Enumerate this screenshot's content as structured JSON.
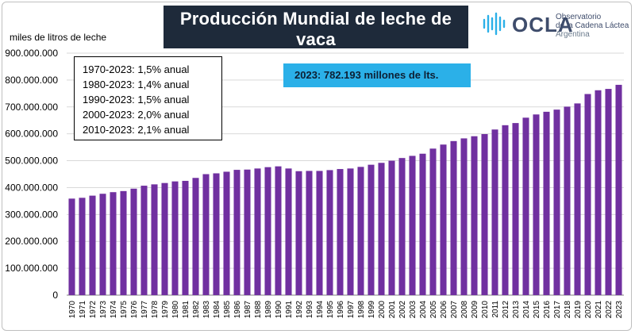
{
  "header": {
    "title": "Producción Mundial de leche de vaca",
    "subtitle": "- en miles de litros de leche -"
  },
  "logo": {
    "name": "OCLA",
    "line1": "Observatorio",
    "line2": "de la Cadena Láctea",
    "line3": "Argentina"
  },
  "summary": {
    "lines": [
      "1970-2023: 1,5% anual",
      "1980-2023: 1,4% anual",
      "1990-2023: 1,5% anual",
      "2000-2023: 2,0% anual",
      "2010-2023: 2,1% anual"
    ]
  },
  "callout": "2023: 782.193 millones de lts.",
  "colors": {
    "bar": "#7030a0",
    "title_bg": "#1e2a3a",
    "callout_bg": "#2bb0e8"
  },
  "chart_data": {
    "type": "bar",
    "title": "Producción Mundial de leche de vaca",
    "subtitle": "- en miles de litros de leche -",
    "xlabel": "",
    "ylabel": "miles de litros de leche",
    "ylim": [
      0,
      900000000
    ],
    "yticks": [
      0,
      100000000,
      200000000,
      300000000,
      400000000,
      500000000,
      600000000,
      700000000,
      800000000,
      900000000
    ],
    "ytick_labels": [
      "0",
      "100.000.000",
      "200.000.000",
      "300.000.000",
      "400.000.000",
      "500.000.000",
      "600.000.000",
      "700.000.000",
      "800.000.000",
      "900.000.000"
    ],
    "grid": true,
    "categories": [
      "1970",
      "1971",
      "1972",
      "1973",
      "1974",
      "1975",
      "1976",
      "1977",
      "1978",
      "1979",
      "1980",
      "1981",
      "1982",
      "1983",
      "1984",
      "1985",
      "1986",
      "1987",
      "1988",
      "1989",
      "1990",
      "1991",
      "1992",
      "1993",
      "1994",
      "1995",
      "1996",
      "1997",
      "1998",
      "1999",
      "2000",
      "2001",
      "2002",
      "2003",
      "2004",
      "2005",
      "2006",
      "2007",
      "2008",
      "2009",
      "2010",
      "2011",
      "2012",
      "2013",
      "2014",
      "2015",
      "2016",
      "2017",
      "2018",
      "2019",
      "2020",
      "2021",
      "2022",
      "2023"
    ],
    "values": [
      359000000,
      362000000,
      370000000,
      377000000,
      383000000,
      387000000,
      396000000,
      407000000,
      412000000,
      417000000,
      423000000,
      425000000,
      436000000,
      450000000,
      453000000,
      459000000,
      466000000,
      467000000,
      471000000,
      476000000,
      479000000,
      471000000,
      461000000,
      462000000,
      462000000,
      465000000,
      469000000,
      471000000,
      477000000,
      485000000,
      492000000,
      500000000,
      510000000,
      518000000,
      526000000,
      545000000,
      560000000,
      573000000,
      583000000,
      591000000,
      599000000,
      616000000,
      632000000,
      640000000,
      660000000,
      672000000,
      682000000,
      690000000,
      701000000,
      713000000,
      748000000,
      762000000,
      767000000,
      782193000
    ]
  }
}
